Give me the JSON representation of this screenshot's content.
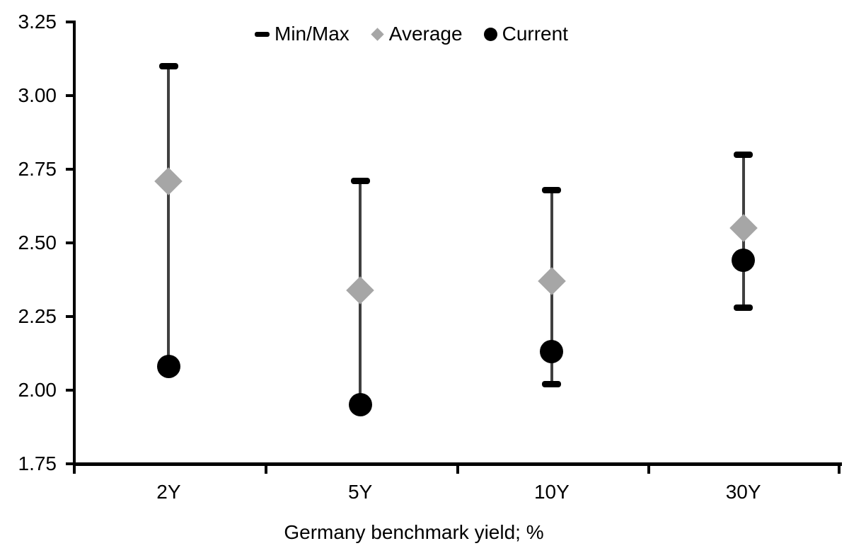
{
  "chart_data": {
    "type": "scatter",
    "subtype": "min-max-range",
    "title": "",
    "xlabel": "Germany benchmark yield; %",
    "ylabel": "",
    "categories": [
      "2Y",
      "5Y",
      "10Y",
      "30Y"
    ],
    "ylim": [
      1.75,
      3.25
    ],
    "ytick_step": 0.25,
    "ytick_labels": [
      "3.25",
      "3.00",
      "2.75",
      "2.50",
      "2.25",
      "2.00",
      "1.75"
    ],
    "grid": false,
    "legend_position": "top-center",
    "series": [
      {
        "name": "Min/Max",
        "marker": "dash",
        "color": "#000000",
        "max_values": [
          3.1,
          2.71,
          2.68,
          2.8
        ],
        "min_values": [
          2.08,
          1.95,
          2.02,
          2.28
        ],
        "min_cap_visible": [
          false,
          false,
          true,
          true
        ]
      },
      {
        "name": "Average",
        "marker": "diamond",
        "color": "#a6a6a6",
        "values": [
          2.71,
          2.34,
          2.37,
          2.55
        ]
      },
      {
        "name": "Current",
        "marker": "circle",
        "color": "#000000",
        "values": [
          2.08,
          1.95,
          2.13,
          2.44
        ]
      }
    ],
    "colors": {
      "error_bar_line": "#404040",
      "axis": "#000000",
      "text": "#000000",
      "background": "#ffffff"
    }
  }
}
